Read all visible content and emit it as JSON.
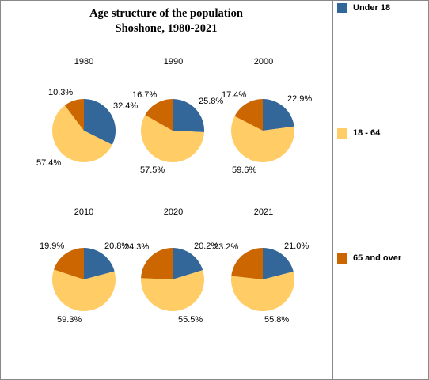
{
  "chart_data": {
    "type": "pie",
    "title": "Age structure of the population",
    "subtitle": "Shoshone, 1980-2021",
    "categories": [
      "Under 18",
      "18 - 64",
      "65 and over"
    ],
    "colors": [
      "#336699",
      "#ffcc66",
      "#cc6600"
    ],
    "legend_position": "right",
    "pies": [
      {
        "label": "1980",
        "values": [
          32.4,
          57.4,
          10.3
        ],
        "value_labels": [
          "32.4%",
          "57.4%",
          "10.3%"
        ]
      },
      {
        "label": "1990",
        "values": [
          25.8,
          57.5,
          16.7
        ],
        "value_labels": [
          "25.8%",
          "57.5%",
          "16.7%"
        ]
      },
      {
        "label": "2000",
        "values": [
          22.9,
          59.6,
          17.4
        ],
        "value_labels": [
          "22.9%",
          "59.6%",
          "17.4%"
        ]
      },
      {
        "label": "2010",
        "values": [
          20.8,
          59.3,
          19.9
        ],
        "value_labels": [
          "20.8%",
          "59.3%",
          "19.9%"
        ]
      },
      {
        "label": "2020",
        "values": [
          20.2,
          55.5,
          24.3
        ],
        "value_labels": [
          "20.2%",
          "55.5%",
          "24.3%"
        ]
      },
      {
        "label": "2021",
        "values": [
          21.0,
          55.8,
          23.2
        ],
        "value_labels": [
          "21.0%",
          "55.8%",
          "23.2%"
        ]
      }
    ]
  }
}
